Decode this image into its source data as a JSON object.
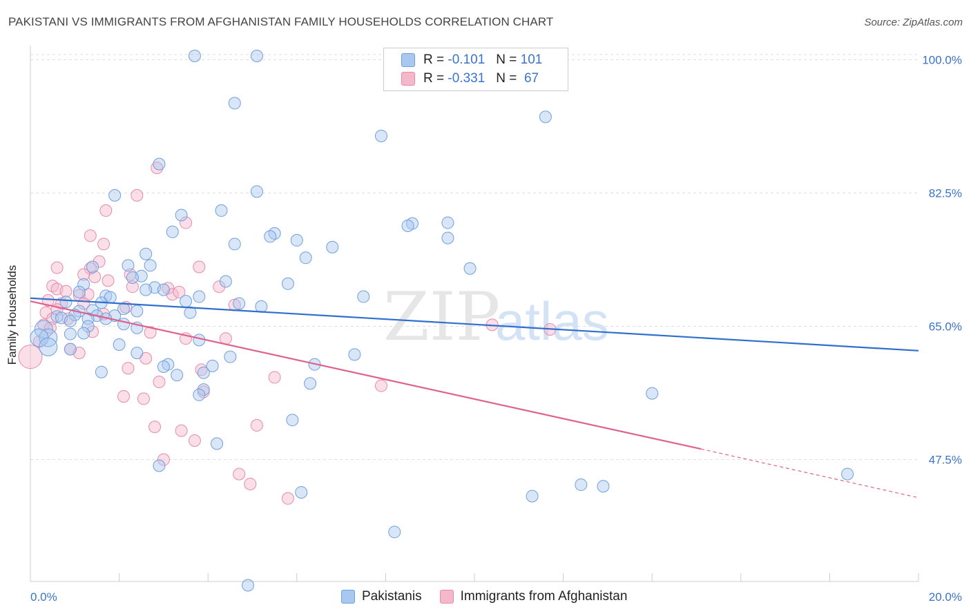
{
  "title": "PAKISTANI VS IMMIGRANTS FROM AFGHANISTAN FAMILY HOUSEHOLDS CORRELATION CHART",
  "source": "Source: ZipAtlas.com",
  "watermark": {
    "zip": "ZIP",
    "atlas": "atlas"
  },
  "legend": [
    {
      "r_label": "R =",
      "r_value": "-0.101",
      "n_label": "N =",
      "n_value": "101"
    },
    {
      "r_label": "R =",
      "r_value": "-0.331",
      "n_label": "N =",
      "n_value": "67"
    }
  ],
  "bottom_legend": [
    "Pakistanis",
    "Immigrants from Afghanistan"
  ],
  "colors": {
    "pakistanis_fill": "#a9c8f0",
    "pakistanis_stroke": "#6f9fdc",
    "pakistanis_line": "#2f6fcf",
    "afghan_fill": "#f5b8cb",
    "afghan_stroke": "#e88aa8",
    "afghan_line": "#e0608e",
    "tick_label": "#3a73c9",
    "grid": "#dddddd"
  },
  "chart_data": {
    "type": "scatter",
    "ylabel": "Family Households",
    "xlim": [
      0,
      20
    ],
    "ylim": [
      31.5,
      101.5
    ],
    "x_tick_labels": [
      "0.0%",
      "20.0%"
    ],
    "y_ticks": [
      47.5,
      65.0,
      82.5,
      100.0
    ],
    "y_tick_labels": [
      "47.5%",
      "65.0%",
      "82.5%",
      "100.0%"
    ],
    "grid": true,
    "series": [
      {
        "name": "Pakistanis",
        "trend": {
          "x0": 0,
          "y0": 68.7,
          "x1": 20,
          "y1": 61.8
        },
        "points": [
          [
            3.7,
            100.5
          ],
          [
            5.1,
            100.5
          ],
          [
            4.6,
            94.3
          ],
          [
            11.6,
            92.5
          ],
          [
            7.9,
            90.0
          ],
          [
            2.9,
            86.3
          ],
          [
            1.9,
            82.2
          ],
          [
            5.1,
            82.7
          ],
          [
            4.3,
            80.2
          ],
          [
            3.4,
            79.6
          ],
          [
            8.6,
            78.5
          ],
          [
            8.5,
            78.2
          ],
          [
            9.4,
            78.6
          ],
          [
            3.2,
            77.4
          ],
          [
            5.5,
            77.2
          ],
          [
            5.4,
            76.8
          ],
          [
            6.0,
            76.3
          ],
          [
            9.4,
            76.6
          ],
          [
            4.6,
            75.8
          ],
          [
            6.8,
            75.4
          ],
          [
            2.6,
            74.5
          ],
          [
            6.2,
            74.0
          ],
          [
            2.2,
            73.0
          ],
          [
            2.7,
            73.0
          ],
          [
            9.9,
            72.6
          ],
          [
            1.4,
            72.8
          ],
          [
            2.5,
            71.6
          ],
          [
            2.3,
            71.4
          ],
          [
            4.4,
            70.9
          ],
          [
            5.8,
            70.6
          ],
          [
            1.2,
            70.5
          ],
          [
            2.8,
            70.1
          ],
          [
            3.0,
            69.8
          ],
          [
            2.6,
            69.8
          ],
          [
            1.1,
            69.5
          ],
          [
            1.7,
            69.0
          ],
          [
            1.8,
            68.8
          ],
          [
            3.8,
            68.9
          ],
          [
            7.5,
            68.9
          ],
          [
            3.5,
            68.3
          ],
          [
            4.7,
            68.0
          ],
          [
            1.6,
            68.1
          ],
          [
            0.8,
            68.2
          ],
          [
            5.2,
            67.6
          ],
          [
            1.4,
            67.1
          ],
          [
            2.1,
            67.3
          ],
          [
            1.1,
            67.0
          ],
          [
            2.4,
            67.0
          ],
          [
            3.6,
            66.8
          ],
          [
            1.5,
            66.4
          ],
          [
            1.9,
            66.4
          ],
          [
            1.0,
            66.5
          ],
          [
            1.3,
            66.0
          ],
          [
            0.6,
            66.3
          ],
          [
            0.7,
            66.1
          ],
          [
            0.9,
            65.7
          ],
          [
            1.7,
            66.0
          ],
          [
            2.1,
            65.3
          ],
          [
            1.3,
            65.0
          ],
          [
            2.4,
            64.8
          ],
          [
            0.3,
            64.6
          ],
          [
            0.9,
            64.0
          ],
          [
            1.2,
            64.1
          ],
          [
            0.4,
            63.5
          ],
          [
            3.8,
            63.2
          ],
          [
            0.2,
            63.5
          ],
          [
            0.4,
            62.3
          ],
          [
            2.0,
            62.6
          ],
          [
            0.9,
            62.0
          ],
          [
            2.4,
            61.5
          ],
          [
            4.5,
            61.0
          ],
          [
            7.3,
            61.3
          ],
          [
            3.1,
            60.0
          ],
          [
            4.1,
            59.8
          ],
          [
            3.0,
            59.7
          ],
          [
            6.4,
            60.0
          ],
          [
            1.6,
            59.0
          ],
          [
            3.9,
            58.9
          ],
          [
            3.3,
            58.6
          ],
          [
            6.3,
            57.5
          ],
          [
            3.9,
            56.7
          ],
          [
            3.8,
            56.0
          ],
          [
            14.0,
            56.2
          ],
          [
            5.9,
            52.7
          ],
          [
            4.2,
            49.6
          ],
          [
            2.9,
            46.7
          ],
          [
            18.4,
            45.6
          ],
          [
            6.1,
            43.2
          ],
          [
            12.4,
            44.2
          ],
          [
            12.9,
            44.0
          ],
          [
            11.3,
            42.7
          ],
          [
            8.2,
            38.0
          ],
          [
            4.9,
            31.0
          ]
        ]
      },
      {
        "name": "Immigrants from Afghanistan",
        "trend": {
          "x0": 0,
          "y0": 68.3,
          "x1": 15.1,
          "y1": 48.9
        },
        "trend_dashed": {
          "x0": 15.1,
          "y0": 48.9,
          "x1": 20,
          "y1": 42.5
        },
        "points": [
          [
            2.85,
            85.8
          ],
          [
            2.4,
            82.2
          ],
          [
            1.7,
            80.2
          ],
          [
            3.5,
            78.6
          ],
          [
            1.35,
            76.9
          ],
          [
            1.65,
            75.8
          ],
          [
            1.55,
            73.5
          ],
          [
            0.6,
            72.7
          ],
          [
            3.8,
            72.8
          ],
          [
            1.35,
            72.6
          ],
          [
            1.2,
            71.8
          ],
          [
            1.45,
            71.5
          ],
          [
            2.25,
            71.8
          ],
          [
            1.75,
            71.0
          ],
          [
            2.3,
            70.2
          ],
          [
            3.1,
            70.0
          ],
          [
            4.25,
            70.2
          ],
          [
            0.5,
            70.3
          ],
          [
            0.6,
            69.9
          ],
          [
            0.8,
            69.6
          ],
          [
            1.3,
            69.2
          ],
          [
            1.1,
            69.1
          ],
          [
            3.2,
            69.2
          ],
          [
            3.35,
            69.5
          ],
          [
            0.4,
            68.4
          ],
          [
            0.7,
            68.0
          ],
          [
            1.2,
            68.0
          ],
          [
            2.15,
            67.5
          ],
          [
            4.6,
            67.8
          ],
          [
            0.6,
            67.2
          ],
          [
            0.35,
            66.8
          ],
          [
            1.65,
            66.6
          ],
          [
            0.5,
            66.0
          ],
          [
            0.85,
            66.0
          ],
          [
            0.3,
            65.2
          ],
          [
            0.45,
            64.8
          ],
          [
            1.4,
            64.3
          ],
          [
            2.7,
            64.2
          ],
          [
            10.4,
            65.2
          ],
          [
            11.7,
            64.6
          ],
          [
            3.5,
            63.4
          ],
          [
            4.4,
            63.4
          ],
          [
            0.2,
            63.0
          ],
          [
            0.9,
            62.0
          ],
          [
            1.1,
            61.5
          ],
          [
            2.6,
            60.8
          ],
          [
            2.2,
            59.5
          ],
          [
            3.85,
            59.3
          ],
          [
            5.5,
            58.3
          ],
          [
            2.9,
            57.7
          ],
          [
            3.9,
            56.4
          ],
          [
            7.9,
            57.2
          ],
          [
            2.1,
            55.8
          ],
          [
            2.55,
            55.5
          ],
          [
            2.8,
            51.8
          ],
          [
            3.4,
            51.3
          ],
          [
            3.7,
            50.0
          ],
          [
            5.1,
            52.0
          ],
          [
            3.0,
            47.5
          ],
          [
            4.7,
            45.6
          ],
          [
            4.95,
            44.3
          ],
          [
            5.8,
            42.4
          ],
          [
            0.0,
            61.0
          ]
        ]
      }
    ]
  }
}
